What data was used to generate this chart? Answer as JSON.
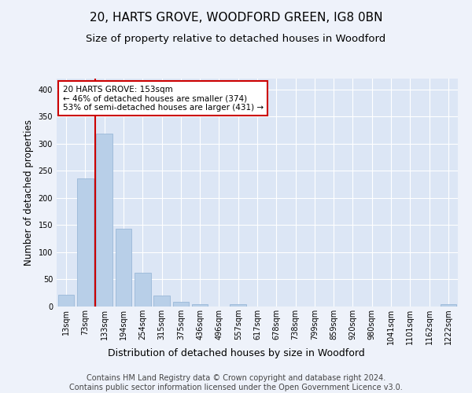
{
  "title": "20, HARTS GROVE, WOODFORD GREEN, IG8 0BN",
  "subtitle": "Size of property relative to detached houses in Woodford",
  "xlabel": "Distribution of detached houses by size in Woodford",
  "ylabel": "Number of detached properties",
  "bar_labels": [
    "13sqm",
    "73sqm",
    "133sqm",
    "194sqm",
    "254sqm",
    "315sqm",
    "375sqm",
    "436sqm",
    "496sqm",
    "557sqm",
    "617sqm",
    "678sqm",
    "738sqm",
    "799sqm",
    "859sqm",
    "920sqm",
    "980sqm",
    "1041sqm",
    "1101sqm",
    "1162sqm",
    "1222sqm"
  ],
  "bar_values": [
    22,
    236,
    319,
    144,
    63,
    20,
    8,
    5,
    0,
    5,
    0,
    0,
    0,
    0,
    0,
    0,
    0,
    0,
    0,
    0,
    4
  ],
  "bar_color": "#b8cfe8",
  "bar_edge_color": "#9ab8d8",
  "vline_color": "#cc0000",
  "vline_pos": 1.5,
  "annotation_text": "20 HARTS GROVE: 153sqm\n← 46% of detached houses are smaller (374)\n53% of semi-detached houses are larger (431) →",
  "annotation_box_facecolor": "#ffffff",
  "annotation_box_edgecolor": "#cc0000",
  "ylim": [
    0,
    420
  ],
  "yticks": [
    0,
    50,
    100,
    150,
    200,
    250,
    300,
    350,
    400
  ],
  "plot_bg_color": "#dce6f5",
  "fig_bg_color": "#eef2fa",
  "grid_color": "#ffffff",
  "footer": "Contains HM Land Registry data © Crown copyright and database right 2024.\nContains public sector information licensed under the Open Government Licence v3.0.",
  "title_fontsize": 11,
  "subtitle_fontsize": 9.5,
  "ylabel_fontsize": 8.5,
  "xlabel_fontsize": 9,
  "tick_fontsize": 7,
  "annot_fontsize": 7.5,
  "footer_fontsize": 7
}
